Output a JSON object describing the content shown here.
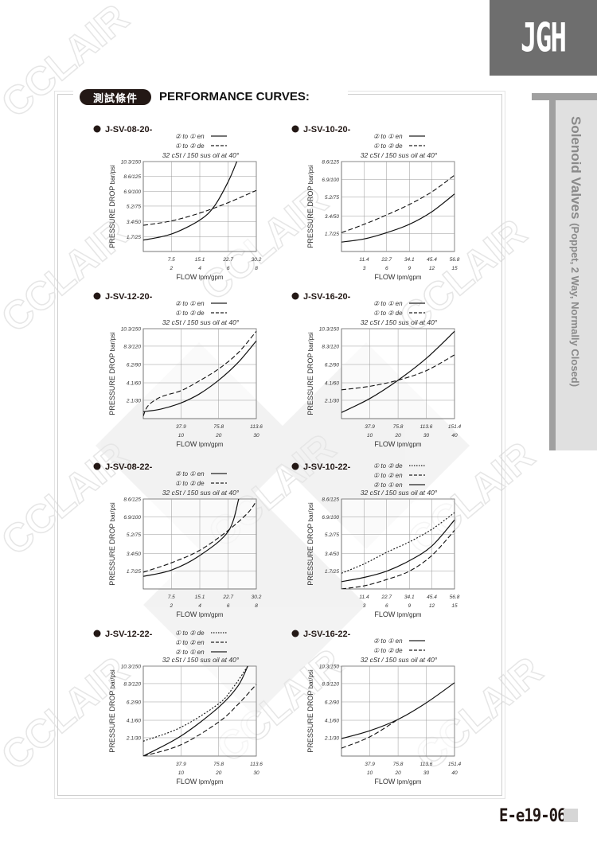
{
  "brand": {
    "logo_text": "JGH"
  },
  "watermark": "CCLAIR",
  "sidebar": {
    "title": "Solenoid Valves",
    "subtitle": "(Poppet, 2 Way, Normally Closed)"
  },
  "header": {
    "badge": "測試條件",
    "title": "PERFORMANCE CURVES:"
  },
  "footer": {
    "page_number": "E-e19-06"
  },
  "colors": {
    "brand_block": "#6e6e6e",
    "sidebar_panel": "#e0e0e0",
    "ink": "#231815"
  },
  "chart_data": [
    {
      "type": "line",
      "title": "J-SV-08-20-",
      "condition": "32 cSt / 150 sus oil at 40°",
      "ylabel": "PRESSURE DROP",
      "yunit": "bar/psi",
      "xlabel": "FLOW",
      "xunit": "lpm/gpm",
      "ylim": [
        0,
        10.3
      ],
      "yticks": [
        {
          "v": 1.7,
          "label": "1.7/25"
        },
        {
          "v": 3.4,
          "label": "3.4/50"
        },
        {
          "v": 5.2,
          "label": "5.2/75"
        },
        {
          "v": 6.9,
          "label": "6.9/100"
        },
        {
          "v": 8.6,
          "label": "8.6/125"
        },
        {
          "v": 10.3,
          "label": "10.3/150"
        }
      ],
      "xlim": [
        0,
        30.2
      ],
      "xticks": [
        {
          "v": 7.5,
          "lpm": "7.5",
          "gpm": "2"
        },
        {
          "v": 15.1,
          "lpm": "15.1",
          "gpm": "4"
        },
        {
          "v": 22.7,
          "lpm": "22.7",
          "gpm": "6"
        },
        {
          "v": 30.2,
          "lpm": "30.2",
          "gpm": "8"
        }
      ],
      "grid": true,
      "series": [
        {
          "name": "② to ① en",
          "style": "solid",
          "points": [
            [
              0,
              1.3
            ],
            [
              7.5,
              2.0
            ],
            [
              15.1,
              3.6
            ],
            [
              19,
              5.2
            ],
            [
              22.7,
              8.0
            ],
            [
              25,
              10.3
            ]
          ]
        },
        {
          "name": "① to ② de",
          "style": "dashed",
          "points": [
            [
              0,
              3.0
            ],
            [
              7.5,
              3.5
            ],
            [
              15.1,
              4.4
            ],
            [
              22.7,
              5.6
            ],
            [
              30.2,
              7.0
            ]
          ]
        }
      ]
    },
    {
      "type": "line",
      "title": "J-SV-10-20-",
      "condition": "32 cSt / 150 sus oil at 40°",
      "ylabel": "PRESSURE DROP",
      "yunit": "bar/psi",
      "xlabel": "FLOW",
      "xunit": "lpm/gpm",
      "ylim": [
        0,
        8.6
      ],
      "yticks": [
        {
          "v": 1.7,
          "label": "1.7/25"
        },
        {
          "v": 3.4,
          "label": "3.4/50"
        },
        {
          "v": 5.2,
          "label": "5.2/75"
        },
        {
          "v": 6.9,
          "label": "6.9/100"
        },
        {
          "v": 8.6,
          "label": "8.6/125"
        }
      ],
      "xlim": [
        0,
        56.8
      ],
      "xticks": [
        {
          "v": 11.4,
          "lpm": "11.4",
          "gpm": "3"
        },
        {
          "v": 22.7,
          "lpm": "22.7",
          "gpm": "6"
        },
        {
          "v": 34.1,
          "lpm": "34.1",
          "gpm": "9"
        },
        {
          "v": 45.4,
          "lpm": "45.4",
          "gpm": "12"
        },
        {
          "v": 56.8,
          "lpm": "56.8",
          "gpm": "15"
        }
      ],
      "grid": true,
      "series": [
        {
          "name": "② to ① en",
          "style": "solid",
          "points": [
            [
              0,
              0.9
            ],
            [
              11.4,
              1.2
            ],
            [
              22.7,
              1.8
            ],
            [
              34.1,
              2.6
            ],
            [
              45.4,
              3.8
            ],
            [
              56.8,
              5.5
            ]
          ]
        },
        {
          "name": "① to ② de",
          "style": "dashed",
          "points": [
            [
              0,
              1.8
            ],
            [
              11.4,
              2.6
            ],
            [
              22.7,
              3.5
            ],
            [
              34.1,
              4.5
            ],
            [
              45.4,
              5.7
            ],
            [
              56.8,
              7.3
            ]
          ]
        }
      ]
    },
    {
      "type": "line",
      "title": "J-SV-12-20-",
      "condition": "32 cSt / 150 sus oil at 40°",
      "ylabel": "PRESSURE DROP",
      "yunit": "bar/psi",
      "xlabel": "FLOW",
      "xunit": "lpm/gpm",
      "ylim": [
        0,
        10.3
      ],
      "yticks": [
        {
          "v": 2.1,
          "label": "2.1/30"
        },
        {
          "v": 4.1,
          "label": "4.1/60"
        },
        {
          "v": 6.2,
          "label": "6.2/90"
        },
        {
          "v": 8.3,
          "label": "8.3/120"
        },
        {
          "v": 10.3,
          "label": "10.3/150"
        }
      ],
      "xlim": [
        0,
        113.6
      ],
      "xticks": [
        {
          "v": 37.9,
          "lpm": "37.9",
          "gpm": "10"
        },
        {
          "v": 75.8,
          "lpm": "75.8",
          "gpm": "20"
        },
        {
          "v": 113.6,
          "lpm": "113.6",
          "gpm": "30"
        }
      ],
      "grid": true,
      "series": [
        {
          "name": "② to ① en",
          "style": "solid",
          "points": [
            [
              0,
              0.8
            ],
            [
              18,
              1.1
            ],
            [
              37.9,
              1.8
            ],
            [
              56,
              2.8
            ],
            [
              75.8,
              4.4
            ],
            [
              95,
              6.4
            ],
            [
              113.6,
              8.9
            ]
          ]
        },
        {
          "name": "① to ② de",
          "style": "dashed",
          "points": [
            [
              0,
              0.3
            ],
            [
              5,
              1.5
            ],
            [
              18,
              2.5
            ],
            [
              37.9,
              3.2
            ],
            [
              56,
              4.3
            ],
            [
              75.8,
              5.7
            ],
            [
              95,
              7.5
            ],
            [
              113.6,
              10.0
            ]
          ]
        }
      ]
    },
    {
      "type": "line",
      "title": "J-SV-16-20-",
      "condition": "32 cSt / 150 sus oil at 40°",
      "ylabel": "PRESSURE DROP",
      "yunit": "bar/psi",
      "xlabel": "FLOW",
      "xunit": "lpm/gpm",
      "ylim": [
        0,
        10.3
      ],
      "yticks": [
        {
          "v": 2.1,
          "label": "2.1/30"
        },
        {
          "v": 4.1,
          "label": "4.1/60"
        },
        {
          "v": 6.2,
          "label": "6.2/90"
        },
        {
          "v": 8.3,
          "label": "8.3/120"
        },
        {
          "v": 10.3,
          "label": "10.3/150"
        }
      ],
      "xlim": [
        0,
        151.4
      ],
      "xticks": [
        {
          "v": 37.9,
          "lpm": "37.9",
          "gpm": "10"
        },
        {
          "v": 75.8,
          "lpm": "75.8",
          "gpm": "20"
        },
        {
          "v": 113.6,
          "lpm": "113.6",
          "gpm": "30"
        },
        {
          "v": 151.4,
          "lpm": "151.4",
          "gpm": "40"
        }
      ],
      "grid": true,
      "series": [
        {
          "name": "② to ① en",
          "style": "solid",
          "points": [
            [
              0,
              0.7
            ],
            [
              37.9,
              2.3
            ],
            [
              75.8,
              4.4
            ],
            [
              113.6,
              6.9
            ],
            [
              151.4,
              10.0
            ]
          ]
        },
        {
          "name": "① to ② de",
          "style": "dashed",
          "points": [
            [
              0,
              3.3
            ],
            [
              37.9,
              3.7
            ],
            [
              75.8,
              4.4
            ],
            [
              113.6,
              5.5
            ],
            [
              151.4,
              7.3
            ]
          ]
        }
      ]
    },
    {
      "type": "line",
      "title": "J-SV-08-22-",
      "condition": "32 cSt / 150 sus oil at 40°",
      "ylabel": "PRESSURE DROP",
      "yunit": "bar/psi",
      "xlabel": "FLOW",
      "xunit": "lpm/gpm",
      "ylim": [
        0,
        8.6
      ],
      "yticks": [
        {
          "v": 1.7,
          "label": "1.7/25"
        },
        {
          "v": 3.4,
          "label": "3.4/50"
        },
        {
          "v": 5.2,
          "label": "5.2/75"
        },
        {
          "v": 6.9,
          "label": "6.9/100"
        },
        {
          "v": 8.6,
          "label": "8.6/125"
        }
      ],
      "xlim": [
        0,
        30.2
      ],
      "xticks": [
        {
          "v": 7.5,
          "lpm": "7.5",
          "gpm": "2"
        },
        {
          "v": 15.1,
          "lpm": "15.1",
          "gpm": "4"
        },
        {
          "v": 22.7,
          "lpm": "22.7",
          "gpm": "6"
        },
        {
          "v": 30.2,
          "lpm": "30.2",
          "gpm": "8"
        }
      ],
      "grid": true,
      "series": [
        {
          "name": "② to ① en",
          "style": "solid",
          "points": [
            [
              0,
              1.2
            ],
            [
              7.5,
              1.8
            ],
            [
              15.1,
              3.2
            ],
            [
              22.7,
              5.5
            ],
            [
              25.5,
              8.6
            ]
          ]
        },
        {
          "name": "① to ② de",
          "style": "dashed",
          "points": [
            [
              0,
              1.6
            ],
            [
              7.5,
              2.5
            ],
            [
              15.1,
              3.7
            ],
            [
              22.7,
              5.6
            ],
            [
              28,
              7.3
            ],
            [
              30.2,
              8.4
            ]
          ]
        }
      ]
    },
    {
      "type": "line",
      "title": "J-SV-10-22-",
      "condition": "32 cSt / 150 sus oil at 40°",
      "ylabel": "PRESSURE DROP",
      "yunit": "bar/psi",
      "xlabel": "FLOW",
      "xunit": "lpm/gpm",
      "ylim": [
        0,
        8.6
      ],
      "yticks": [
        {
          "v": 1.7,
          "label": "1.7/25"
        },
        {
          "v": 3.4,
          "label": "3.4/50"
        },
        {
          "v": 5.2,
          "label": "5.2/75"
        },
        {
          "v": 6.9,
          "label": "6.9/100"
        },
        {
          "v": 8.6,
          "label": "8.6/125"
        }
      ],
      "xlim": [
        0,
        56.8
      ],
      "xticks": [
        {
          "v": 11.4,
          "lpm": "11.4",
          "gpm": "3"
        },
        {
          "v": 22.7,
          "lpm": "22.7",
          "gpm": "6"
        },
        {
          "v": 34.1,
          "lpm": "34.1",
          "gpm": "9"
        },
        {
          "v": 45.4,
          "lpm": "45.4",
          "gpm": "12"
        },
        {
          "v": 56.8,
          "lpm": "56.8",
          "gpm": "15"
        }
      ],
      "grid": true,
      "series": [
        {
          "name": "① to ② de",
          "style": "dotted",
          "points": [
            [
              0,
              1.5
            ],
            [
              11.4,
              2.4
            ],
            [
              22.7,
              3.5
            ],
            [
              34.1,
              4.5
            ],
            [
              45.4,
              5.7
            ],
            [
              56.8,
              7.3
            ]
          ]
        },
        {
          "name": "① to ② en",
          "style": "dashed",
          "points": [
            [
              0,
              0
            ],
            [
              11.4,
              0.3
            ],
            [
              22.7,
              0.9
            ],
            [
              34.1,
              1.7
            ],
            [
              45.4,
              3.2
            ],
            [
              56.8,
              5.6
            ]
          ]
        },
        {
          "name": "② to ① en",
          "style": "solid",
          "points": [
            [
              0,
              0.7
            ],
            [
              11.4,
              1.1
            ],
            [
              22.7,
              1.7
            ],
            [
              34.1,
              2.7
            ],
            [
              45.4,
              4.1
            ],
            [
              56.8,
              6.6
            ]
          ]
        }
      ]
    },
    {
      "type": "line",
      "title": "J-SV-12-22-",
      "condition": "32 cSt / 150 sus oil at 40°",
      "ylabel": "PRESSURE DROP",
      "yunit": "bar/psi",
      "xlabel": "FLOW",
      "xunit": "lpm/gpm",
      "ylim": [
        0,
        10.3
      ],
      "yticks": [
        {
          "v": 2.1,
          "label": "2.1/30"
        },
        {
          "v": 4.1,
          "label": "4.1/60"
        },
        {
          "v": 6.2,
          "label": "6.2/90"
        },
        {
          "v": 8.3,
          "label": "8.3/120"
        },
        {
          "v": 10.3,
          "label": "10.3/150"
        }
      ],
      "xlim": [
        0,
        113.6
      ],
      "xticks": [
        {
          "v": 37.9,
          "lpm": "37.9",
          "gpm": "10"
        },
        {
          "v": 75.8,
          "lpm": "75.8",
          "gpm": "20"
        },
        {
          "v": 113.6,
          "lpm": "113.6",
          "gpm": "30"
        }
      ],
      "grid": true,
      "series": [
        {
          "name": "① to ② de",
          "style": "dotted",
          "points": [
            [
              0,
              1.7
            ],
            [
              37.9,
              3.3
            ],
            [
              75.8,
              6.0
            ],
            [
              90,
              7.8
            ],
            [
              105,
              10.3
            ]
          ]
        },
        {
          "name": "① to ② en",
          "style": "dashed",
          "points": [
            [
              0,
              0
            ],
            [
              37.9,
              1.3
            ],
            [
              75.8,
              3.9
            ],
            [
              95,
              5.9
            ],
            [
              113.6,
              8.2
            ]
          ]
        },
        {
          "name": "② to ① en",
          "style": "solid",
          "points": [
            [
              0,
              0
            ],
            [
              37.9,
              2.3
            ],
            [
              75.8,
              5.6
            ],
            [
              95,
              8.0
            ],
            [
              105,
              10.3
            ]
          ]
        }
      ]
    },
    {
      "type": "line",
      "title": "J-SV-16-22-",
      "condition": "32 cSt / 150 sus oil at 40°",
      "ylabel": "PRESSURE DROP",
      "yunit": "bar/psi",
      "xlabel": "FLOW",
      "xunit": "lpm/gpm",
      "ylim": [
        0,
        10.3
      ],
      "yticks": [
        {
          "v": 2.1,
          "label": "2.1/30"
        },
        {
          "v": 4.1,
          "label": "4.1/60"
        },
        {
          "v": 6.2,
          "label": "6.2/90"
        },
        {
          "v": 8.3,
          "label": "8.3/120"
        },
        {
          "v": 10.3,
          "label": "10.3/150"
        }
      ],
      "xlim": [
        0,
        151.4
      ],
      "xticks": [
        {
          "v": 37.9,
          "lpm": "37.9",
          "gpm": "10"
        },
        {
          "v": 75.8,
          "lpm": "75.8",
          "gpm": "20"
        },
        {
          "v": 113.6,
          "lpm": "113.6",
          "gpm": "30"
        },
        {
          "v": 151.4,
          "lpm": "151.4",
          "gpm": "40"
        }
      ],
      "grid": true,
      "series": [
        {
          "name": "② to ① en",
          "style": "solid",
          "points": [
            [
              0,
              2.0
            ],
            [
              37.9,
              2.9
            ],
            [
              75.8,
              4.2
            ],
            [
              113.6,
              6.1
            ],
            [
              151.4,
              8.4
            ]
          ]
        },
        {
          "name": "① to ② de",
          "style": "dashed",
          "points": [
            [
              0,
              0.9
            ],
            [
              37.9,
              2.2
            ],
            [
              75.8,
              4.2
            ]
          ]
        }
      ]
    }
  ]
}
